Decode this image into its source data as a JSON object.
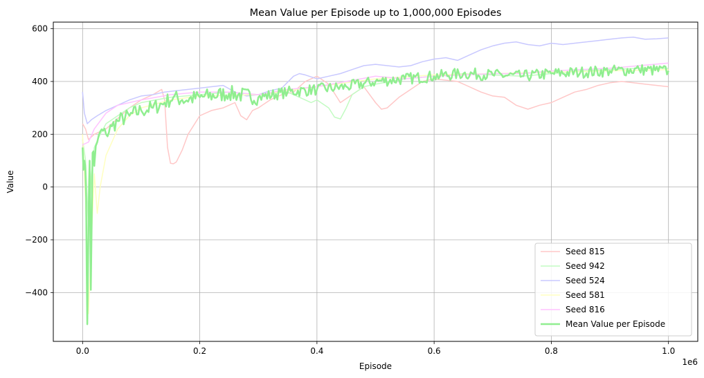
{
  "chart_data": {
    "type": "line",
    "title": "Mean Value per Episode up to 1,000,000 Episodes",
    "xlabel": "Episode",
    "ylabel": "Value",
    "x_offset_label": "1e6",
    "xlim": [
      -50000,
      1050000
    ],
    "ylim": [
      -585,
      625
    ],
    "x_ticks": [
      0,
      200000,
      400000,
      600000,
      800000,
      1000000
    ],
    "x_tick_labels": [
      "0.0",
      "0.2",
      "0.4",
      "0.6",
      "0.8",
      "1.0"
    ],
    "y_ticks": [
      -400,
      -200,
      0,
      200,
      400,
      600
    ],
    "y_tick_labels": [
      "−400",
      "−200",
      "0",
      "200",
      "400",
      "600"
    ],
    "grid": true,
    "legend_position": "lower-right",
    "series": [
      {
        "name": "Seed 815",
        "color": "#ffc7c7",
        "width": 1.5,
        "x": [
          0,
          5000,
          10000,
          20000,
          40000,
          60000,
          80000,
          100000,
          120000,
          135000,
          140000,
          145000,
          150000,
          155000,
          160000,
          170000,
          180000,
          200000,
          220000,
          240000,
          260000,
          270000,
          280000,
          290000,
          300000,
          320000,
          340000,
          360000,
          370000,
          380000,
          400000,
          420000,
          440000,
          460000,
          480000,
          500000,
          510000,
          520000,
          540000,
          560000,
          580000,
          600000,
          620000,
          640000,
          660000,
          680000,
          700000,
          720000,
          740000,
          760000,
          780000,
          800000,
          820000,
          840000,
          860000,
          880000,
          900000,
          920000,
          940000,
          960000,
          980000,
          1000000
        ],
        "y": [
          240,
          220,
          180,
          200,
          220,
          260,
          300,
          330,
          350,
          370,
          330,
          150,
          90,
          88,
          95,
          140,
          200,
          270,
          290,
          300,
          320,
          270,
          255,
          290,
          300,
          330,
          350,
          360,
          380,
          400,
          420,
          390,
          320,
          350,
          380,
          320,
          295,
          300,
          340,
          370,
          400,
          410,
          405,
          400,
          380,
          360,
          345,
          340,
          310,
          295,
          310,
          320,
          340,
          360,
          370,
          385,
          395,
          400,
          395,
          390,
          385,
          380
        ]
      },
      {
        "name": "Seed 942",
        "color": "#c2fbc2",
        "width": 1.5,
        "x": [
          0,
          5000,
          10000,
          15000,
          20000,
          30000,
          40000,
          60000,
          80000,
          100000,
          150000,
          200000,
          250000,
          300000,
          350000,
          380000,
          390000,
          400000,
          420000,
          430000,
          440000,
          450000,
          460000,
          480000,
          500000,
          550000,
          600000,
          650000,
          700000,
          750000,
          800000,
          850000,
          900000,
          950000,
          1000000
        ],
        "y": [
          180,
          100,
          -150,
          50,
          150,
          200,
          240,
          270,
          300,
          320,
          340,
          350,
          360,
          350,
          360,
          330,
          320,
          330,
          300,
          265,
          258,
          300,
          350,
          380,
          390,
          410,
          420,
          430,
          425,
          420,
          430,
          440,
          445,
          450,
          450
        ]
      },
      {
        "name": "Seed 524",
        "color": "#c8c8ff",
        "width": 1.5,
        "x": [
          0,
          3000,
          8000,
          15000,
          25000,
          40000,
          60000,
          80000,
          100000,
          120000,
          140000,
          160000,
          180000,
          200000,
          220000,
          240000,
          260000,
          280000,
          300000,
          320000,
          340000,
          360000,
          370000,
          380000,
          400000,
          420000,
          440000,
          460000,
          480000,
          500000,
          520000,
          540000,
          560000,
          580000,
          600000,
          620000,
          640000,
          660000,
          680000,
          700000,
          720000,
          740000,
          760000,
          780000,
          800000,
          820000,
          840000,
          860000,
          880000,
          900000,
          920000,
          940000,
          960000,
          980000,
          1000000
        ],
        "y": [
          360,
          280,
          240,
          255,
          270,
          290,
          310,
          330,
          345,
          350,
          360,
          365,
          370,
          375,
          380,
          385,
          360,
          345,
          350,
          365,
          375,
          420,
          430,
          425,
          410,
          420,
          430,
          445,
          460,
          465,
          460,
          455,
          460,
          475,
          485,
          490,
          480,
          500,
          520,
          535,
          545,
          550,
          540,
          535,
          545,
          540,
          545,
          550,
          555,
          560,
          565,
          568,
          560,
          562,
          565
        ]
      },
      {
        "name": "Seed 581",
        "color": "#ffffc0",
        "width": 1.5,
        "x": [
          0,
          5000,
          10000,
          15000,
          20000,
          25000,
          30000,
          40000,
          60000,
          80000,
          100000,
          150000,
          200000,
          300000,
          400000,
          500000,
          600000,
          700000,
          800000,
          900000,
          1000000
        ],
        "y": [
          200,
          -50,
          -480,
          -200,
          50,
          -100,
          0,
          120,
          220,
          270,
          300,
          330,
          345,
          350,
          380,
          410,
          425,
          430,
          435,
          440,
          445
        ]
      },
      {
        "name": "Seed 816",
        "color": "#ffc2ff",
        "width": 1.5,
        "x": [
          0,
          10000,
          20000,
          40000,
          60000,
          100000,
          150000,
          200000,
          250000,
          300000,
          350000,
          400000,
          450000,
          500000,
          550000,
          600000,
          650000,
          700000,
          750000,
          800000,
          850000,
          900000,
          950000,
          1000000
        ],
        "y": [
          160,
          170,
          220,
          280,
          310,
          330,
          350,
          360,
          360,
          350,
          370,
          380,
          400,
          420,
          410,
          420,
          425,
          430,
          430,
          440,
          445,
          450,
          460,
          470
        ]
      },
      {
        "name": "Mean Value per Episode",
        "color": "#90ee90",
        "width": 2.5,
        "noisy": true,
        "x": [
          0,
          3000,
          6000,
          8000,
          10000,
          12000,
          14000,
          17000,
          20000,
          25000,
          30000,
          40000,
          50000,
          60000,
          80000,
          100000,
          120000,
          140000,
          155000,
          170000,
          200000,
          250000,
          300000,
          350000,
          400000,
          450000,
          500000,
          550000,
          600000,
          650000,
          700000,
          750000,
          800000,
          850000,
          900000,
          950000,
          1000000
        ],
        "y": [
          150,
          100,
          -40,
          -520,
          -150,
          100,
          -390,
          130,
          80,
          170,
          210,
          200,
          230,
          250,
          270,
          290,
          300,
          320,
          340,
          330,
          340,
          355,
          340,
          360,
          370,
          380,
          400,
          410,
          420,
          430,
          425,
          420,
          430,
          435,
          440,
          445,
          440
        ]
      }
    ]
  }
}
